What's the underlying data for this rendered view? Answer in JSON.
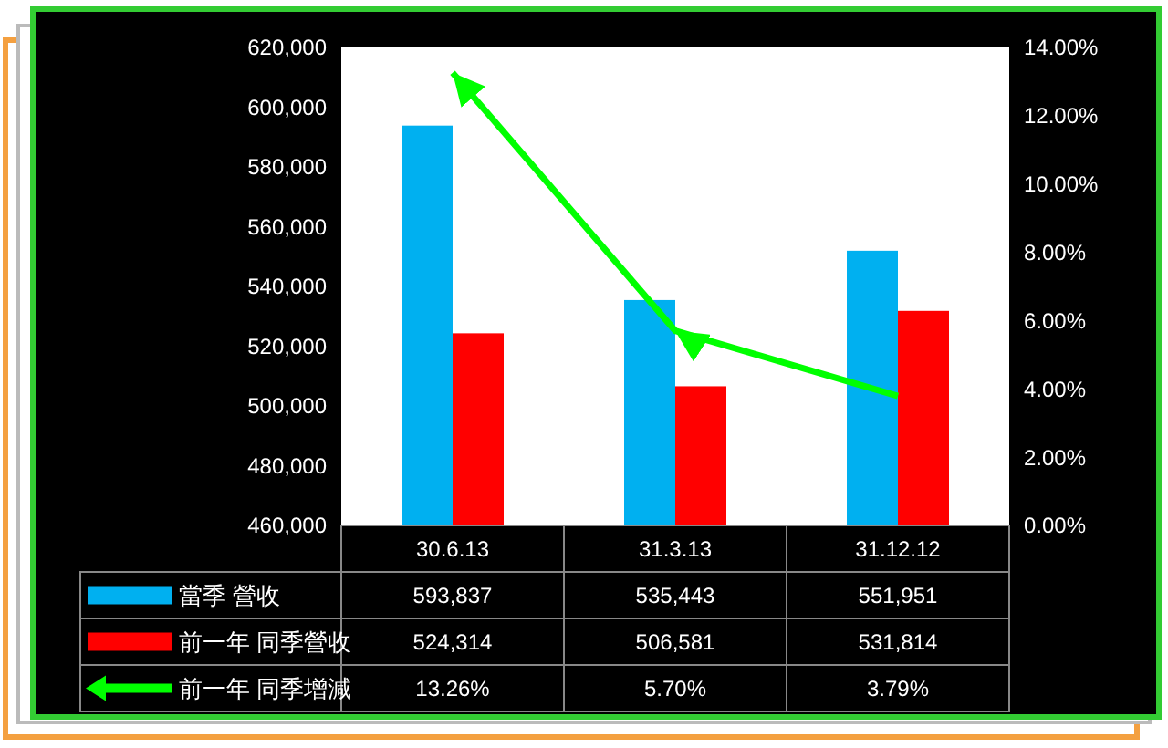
{
  "chart_data": {
    "type": "bar",
    "categories": [
      "30.6.13",
      "31.3.13",
      "31.12.12"
    ],
    "series": [
      {
        "name": "當季 營收",
        "color": "#00b0f0",
        "values": [
          593837,
          535443,
          551951
        ],
        "value_labels": [
          "593,837",
          "535,443",
          "551,951"
        ]
      },
      {
        "name": "前一年 同季營收",
        "color": "#ff0000",
        "values": [
          524314,
          506581,
          531814
        ],
        "value_labels": [
          "524,314",
          "506,581",
          "531,814"
        ]
      },
      {
        "name": "前一年 同季增減",
        "type": "line",
        "axis": "y2",
        "color": "#00ff00",
        "values": [
          13.26,
          5.7,
          3.79
        ],
        "value_labels": [
          "13.26%",
          "5.70%",
          "3.79%"
        ]
      }
    ],
    "ylim": [
      460000,
      620000
    ],
    "yticks": [
      {
        "value": 460000,
        "label": "460,000"
      },
      {
        "value": 480000,
        "label": "480,000"
      },
      {
        "value": 500000,
        "label": "500,000"
      },
      {
        "value": 520000,
        "label": "520,000"
      },
      {
        "value": 540000,
        "label": "540,000"
      },
      {
        "value": 560000,
        "label": "560,000"
      },
      {
        "value": 580000,
        "label": "580,000"
      },
      {
        "value": 600000,
        "label": "600,000"
      },
      {
        "value": 620000,
        "label": "620,000"
      }
    ],
    "y2lim": [
      0,
      14
    ],
    "y2ticks": [
      {
        "value": 0,
        "label": "0.00%"
      },
      {
        "value": 2,
        "label": "2.00%"
      },
      {
        "value": 4,
        "label": "4.00%"
      },
      {
        "value": 6,
        "label": "6.00%"
      },
      {
        "value": 8,
        "label": "8.00%"
      },
      {
        "value": 10,
        "label": "10.00%"
      },
      {
        "value": 12,
        "label": "12.00%"
      },
      {
        "value": 14,
        "label": "14.00%"
      }
    ],
    "legend": "bottom left",
    "grid": false,
    "line_style": "solid"
  }
}
